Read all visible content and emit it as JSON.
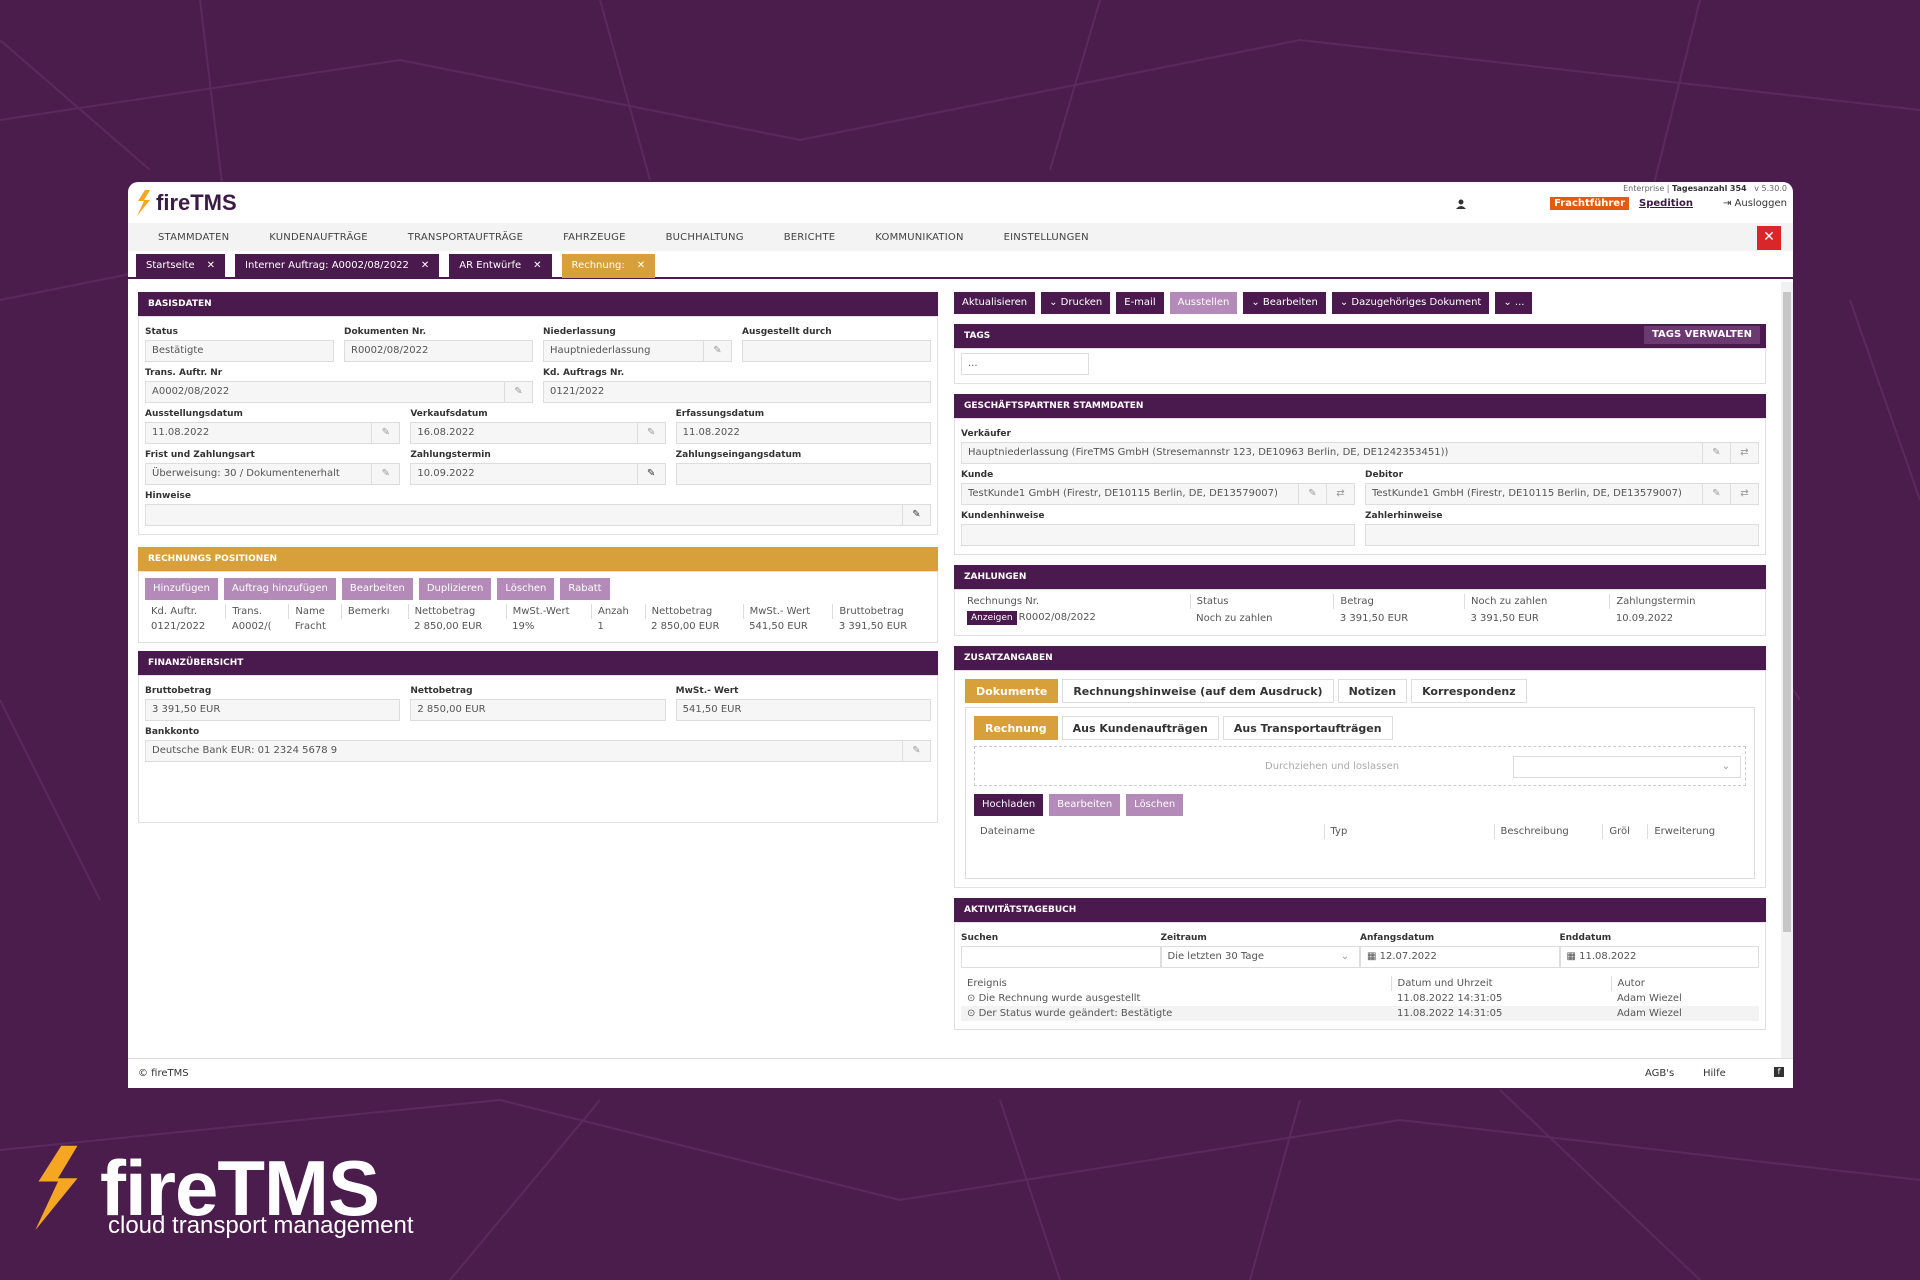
{
  "app": {
    "name": "fireTMS"
  },
  "topbar": {
    "edition": "Enterprise",
    "days_label": "Tagesanzahl",
    "days": "354",
    "version": "v 5.30.0",
    "logout": "Ausloggen",
    "carrier": "Frachtführer",
    "forwarding": "Spedition"
  },
  "nav": [
    "STAMMDATEN",
    "KUNDENAUFTRÄGE",
    "TRANSPORTAUFTRÄGE",
    "FAHRZEUGE",
    "BUCHHALTUNG",
    "BERICHTE",
    "KOMMUNIKATION",
    "EINSTELLUNGEN"
  ],
  "tabs": [
    "Startseite",
    "Interner Auftrag: A0002/08/2022",
    "AR Entwürfe",
    "Rechnung:"
  ],
  "basis": {
    "title": "BASISDATEN",
    "status_l": "Status",
    "status": "Bestätigte",
    "doknr_l": "Dokumenten Nr.",
    "doknr": "R0002/08/2022",
    "nl_l": "Niederlassung",
    "nl": "Hauptniederlassung",
    "ausg_l": "Ausgestellt durch",
    "ausg": "",
    "trans_l": "Trans. Auftr. Nr",
    "trans": "A0002/08/2022",
    "kd_l": "Kd. Auftrags Nr.",
    "kd": "0121/2022",
    "ad_l": "Ausstellungsdatum",
    "ad": "11.08.2022",
    "vd_l": "Verkaufsdatum",
    "vd": "16.08.2022",
    "ed_l": "Erfassungsdatum",
    "ed": "11.08.2022",
    "fz_l": "Frist und Zahlungsart",
    "fz": "Überweisung: 30 / Dokumentenerhalt",
    "zt_l": "Zahlungstermin",
    "zt": "10.09.2022",
    "ze_l": "Zahlungseingangsdatum",
    "ze": "",
    "hw_l": "Hinweise"
  },
  "positions": {
    "title": "RECHNUNGS POSITIONEN",
    "buttons": [
      "Hinzufügen",
      "Auftrag hinzufügen",
      "Bearbeiten",
      "Duplizieren",
      "Löschen",
      "Rabatt"
    ],
    "headers": [
      "Kd. Auftr.",
      "Trans.",
      "Name",
      "Bemerkı",
      "Nettobetrag",
      "MwSt.-Wert",
      "Anzah",
      "Nettobetrag",
      "MwSt.- Wert",
      "Bruttobetrag"
    ],
    "row": [
      "0121/2022",
      "A0002/(",
      "Fracht",
      "",
      "2 850,00 EUR",
      "19%",
      "1",
      "2 850,00 EUR",
      "541,50 EUR",
      "3 391,50 EUR"
    ]
  },
  "finanz": {
    "title": "FINANZÜBERSICHT",
    "brutto_l": "Bruttobetrag",
    "brutto": "3 391,50 EUR",
    "netto_l": "Nettobetrag",
    "netto": "2 850,00 EUR",
    "mwst_l": "MwSt.- Wert",
    "mwst": "541,50 EUR",
    "bank_l": "Bankkonto",
    "bank": "Deutsche Bank EUR: 01 2324 5678 9"
  },
  "actions": [
    "Aktualisieren",
    "Drucken",
    "E-mail",
    "Ausstellen",
    "Bearbeiten",
    "Dazugehöriges Dokument",
    "..."
  ],
  "tags": {
    "title": "TAGS",
    "manage": "Tags verwalten",
    "value": "..."
  },
  "partner": {
    "title": "GESCHÄFTSPARTNER STAMMDATEN",
    "seller_l": "Verkäufer",
    "seller": "Hauptniederlassung (FireTMS GmbH (Stresemannstr 123, DE10963 Berlin, DE, DE1242353451))",
    "kunde_l": "Kunde",
    "kunde": "TestKunde1 GmbH (Firestr, DE10115 Berlin, DE, DE13579007)",
    "debitor_l": "Debitor",
    "debitor": "TestKunde1 GmbH (Firestr, DE10115 Berlin, DE, DE13579007)",
    "khw_l": "Kundenhinweise",
    "zhw_l": "Zahlerhinweise"
  },
  "zahlungen": {
    "title": "ZAHLUNGEN",
    "headers": [
      "Rechnungs Nr.",
      "Status",
      "Betrag",
      "Noch zu zahlen",
      "Zahlungstermin"
    ],
    "show": "Anzeigen",
    "row": [
      "R0002/08/2022",
      "Noch zu zahlen",
      "3 391,50 EUR",
      "3 391,50 EUR",
      "10.09.2022"
    ]
  },
  "zusatz": {
    "title": "ZUSATZANGABEN",
    "tabs": [
      "Dokumente",
      "Rechnungshinweise (auf dem Ausdruck)",
      "Notizen",
      "Korrespondenz"
    ],
    "subtabs": [
      "Rechnung",
      "Aus Kundenaufträgen",
      "Aus Transportaufträgen"
    ],
    "drop": "Durchziehen und loslassen",
    "buttons": [
      "Hochladen",
      "Bearbeiten",
      "Löschen"
    ],
    "headers": [
      "Dateiname",
      "Typ",
      "Beschreibung",
      "Gröl",
      "Erweiterung"
    ]
  },
  "aktiv": {
    "title": "AKTIVITÄTSTAGEBUCH",
    "search_l": "Suchen",
    "zeit_l": "Zeitraum",
    "zeit": "Die letzten 30 Tage",
    "anf_l": "Anfangsdatum",
    "anf": "12.07.2022",
    "end_l": "Enddatum",
    "end": "11.08.2022",
    "headers": [
      "Ereignis",
      "Datum und Uhrzeit",
      "Autor"
    ],
    "rows": [
      [
        "Die Rechnung wurde ausgestellt",
        "11.08.2022 14:31:05",
        "Adam Wiezel"
      ],
      [
        "Der Status wurde geändert: Bestätigte",
        "11.08.2022 14:31:05",
        "Adam Wiezel"
      ]
    ]
  },
  "footer": {
    "copy": "© fireTMS",
    "agb": "AGB's",
    "hilfe": "Hilfe"
  },
  "brand": {
    "name": "fireTMS",
    "tagline": "cloud transport management"
  },
  "colors": {
    "purple": "#4a1a4e",
    "gold": "#d8a03a",
    "bg": "#4b1d4d",
    "accent": "#e35b0e"
  }
}
